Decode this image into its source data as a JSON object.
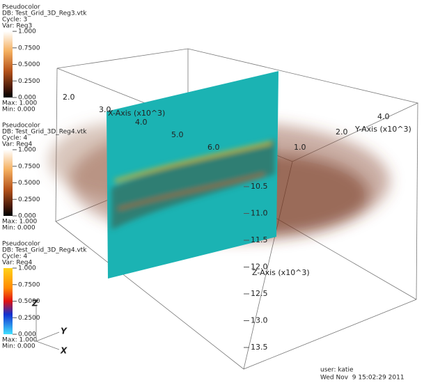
{
  "legends": [
    {
      "title": "Pseudocolor",
      "db": "DB: Test_Grid_3D_Reg3.vtk",
      "cycle": "Cycle: 3",
      "var": "Var: Reg3",
      "ticks": [
        "1.000",
        "0.7500",
        "0.5000",
        "0.2500",
        "0.000"
      ],
      "max": "Max: 1.000",
      "min": "Min: 0.000"
    },
    {
      "title": "Pseudocolor",
      "db": "DB: Test_Grid_3D_Reg4.vtk",
      "cycle": "Cycle: 4",
      "var": "Var: Reg4",
      "ticks": [
        "1.000",
        "0.7500",
        "0.5000",
        "0.2500",
        "0.000"
      ],
      "max": "Max: 1.000",
      "min": "Min: 0.000"
    },
    {
      "title": "Pseudocolor",
      "db": "DB: Test_Grid_3D_Reg4.vtk",
      "cycle": "Cycle: 4",
      "var": "Var: Reg4",
      "ticks": [
        "1.000",
        "0.7500",
        "0.5000",
        "0.2500",
        "0.000"
      ],
      "max": "Max: 1.000",
      "min": "Min: 0.000"
    }
  ],
  "axes": {
    "x": {
      "label": "X-Axis (x10^3)",
      "ticks": [
        "2.0",
        "3.0",
        "4.0",
        "5.0",
        "6.0"
      ]
    },
    "y": {
      "label": "Y-Axis (x10^3)",
      "ticks": [
        "1.0",
        "2.0",
        "4.0"
      ]
    },
    "z": {
      "label": "Z-Axis (x10^3)",
      "ticks": [
        "10.5",
        "11.0",
        "11.5",
        "12.0",
        "12.5",
        "13.0",
        "13.5"
      ]
    }
  },
  "triad": {
    "z": "Z",
    "y": "Y",
    "x": "X"
  },
  "user": "user: katie",
  "date": "Wed Nov  9 15:02:29 2011"
}
